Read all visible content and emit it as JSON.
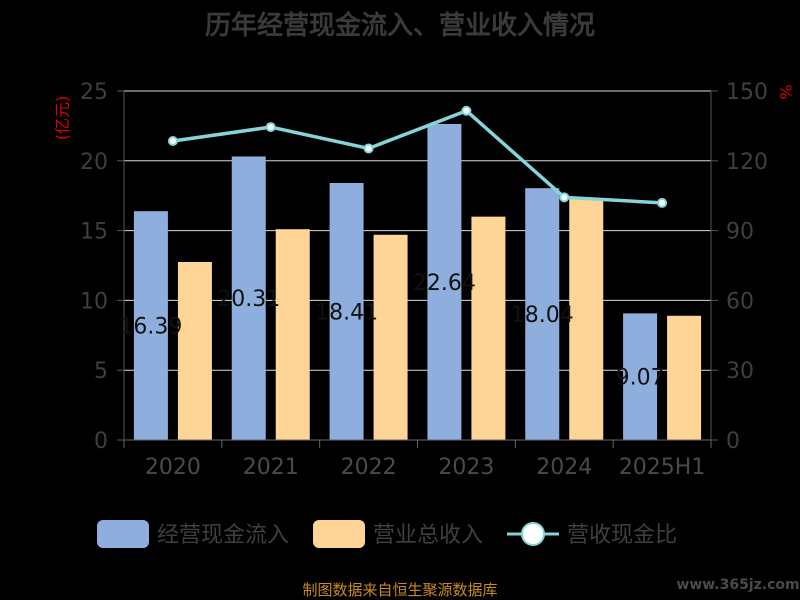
{
  "chart_data": {
    "type": "bar",
    "title": "历年经营现金流入、营业收入情况",
    "categories": [
      "2020",
      "2021",
      "2022",
      "2023",
      "2024",
      "2025H1"
    ],
    "y_left": {
      "unit": "(亿元)",
      "ylim": [
        0,
        25
      ],
      "ticks": [
        "0",
        "5",
        "10",
        "15",
        "20",
        "25"
      ]
    },
    "y_right": {
      "unit": "%",
      "ylim": [
        0,
        150
      ],
      "ticks": [
        "0",
        "30",
        "60",
        "90",
        "120",
        "150"
      ]
    },
    "series": [
      {
        "name": "经营现金流入",
        "kind": "bar",
        "axis": "left",
        "color": "#8eaedd",
        "values": [
          16.39,
          20.31,
          18.41,
          22.64,
          18.04,
          9.07
        ]
      },
      {
        "name": "营业总收入",
        "kind": "bar",
        "axis": "left",
        "color": "#fed597",
        "values": [
          12.75,
          15.1,
          14.7,
          16.0,
          17.3,
          8.9
        ]
      },
      {
        "name": "营收现金比",
        "kind": "line",
        "axis": "right",
        "color": "#85d5d8",
        "values": [
          128.5,
          134.5,
          125.3,
          141.5,
          104.3,
          101.9
        ]
      }
    ],
    "data_labels": [
      "16.39",
      "20.31",
      "18.41",
      "22.64",
      "18.04",
      "9.07"
    ],
    "grid": true,
    "legend": "bottom"
  },
  "footer": {
    "source": "制图数据来自恒生聚源数据库",
    "watermark": "www.365jz.com"
  }
}
